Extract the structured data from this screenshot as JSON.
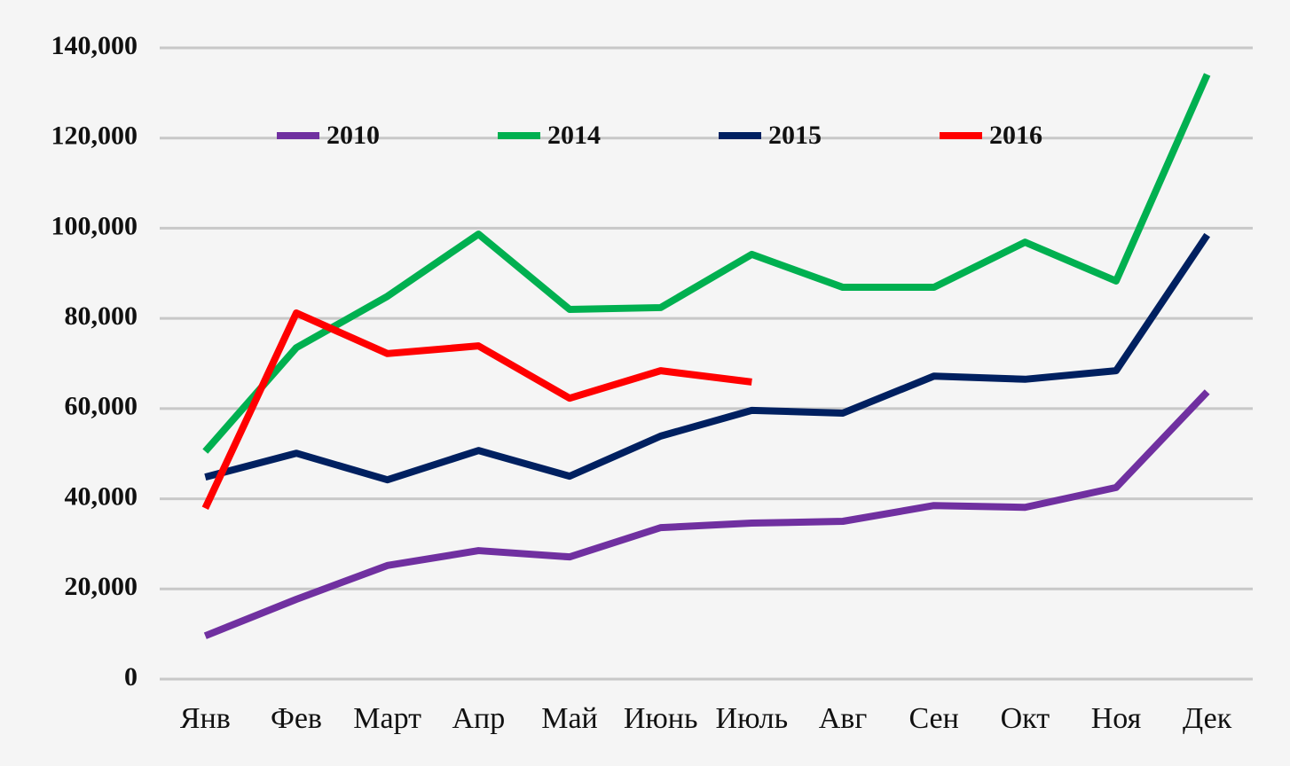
{
  "chart_data": {
    "type": "line",
    "categories": [
      "Янв",
      "Фев",
      "Март",
      "Апр",
      "Май",
      "Июнь",
      "Июль",
      "Авг",
      "Сен",
      "Окт",
      "Ноя",
      "Дек"
    ],
    "series": [
      {
        "name": "2010",
        "color": "#7030a0",
        "values": [
          9600,
          17700,
          25200,
          28500,
          27100,
          33600,
          34600,
          35000,
          38500,
          38100,
          42500,
          63700
        ]
      },
      {
        "name": "2014",
        "color": "#00b050",
        "values": [
          50500,
          73500,
          84900,
          98700,
          82000,
          82400,
          94200,
          86900,
          86900,
          96900,
          88300,
          134100
        ]
      },
      {
        "name": "2015",
        "color": "#002060",
        "values": [
          44800,
          50100,
          44200,
          50700,
          45000,
          53900,
          59600,
          59000,
          67200,
          66500,
          68400,
          98500
        ]
      },
      {
        "name": "2016",
        "color": "#ff0000",
        "values": [
          37900,
          81200,
          72200,
          73900,
          62300,
          68400,
          65900,
          null,
          null,
          null,
          null,
          null
        ]
      }
    ],
    "ylim": [
      0,
      140000
    ],
    "yticks": [
      0,
      {
        "value": 20000,
        "label": "20,000"
      },
      {
        "value": 40000,
        "label": "40,000"
      },
      {
        "value": 60000,
        "label": "60,000"
      },
      {
        "value": 80000,
        "label": "80,000"
      },
      {
        "value": 100000,
        "label": "100,000"
      },
      {
        "value": 120000,
        "label": "120,000"
      },
      {
        "value": 140000,
        "label": "140,000"
      }
    ],
    "grid": true,
    "legend": "top"
  }
}
